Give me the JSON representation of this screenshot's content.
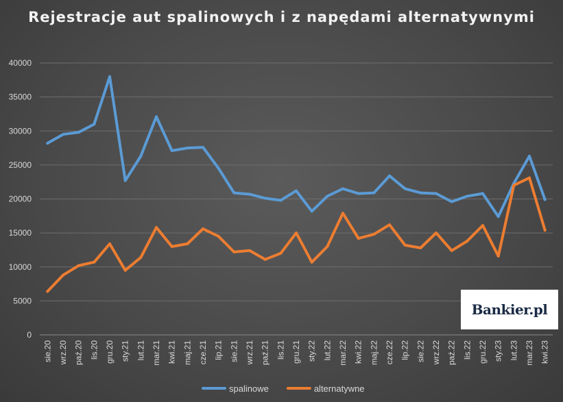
{
  "chart_data": {
    "type": "line",
    "title": "Rejestracje aut spalinowych i z napędami alternatywnymi",
    "categories": [
      "sie.20",
      "wrz.20",
      "paź.20",
      "lis.20",
      "gru.20",
      "sty.21",
      "lut.21",
      "mar.21",
      "kwi.21",
      "maj.21",
      "cze.21",
      "lip.21",
      "sie.21",
      "wrz.21",
      "paź.21",
      "lis.21",
      "gru.21",
      "sty.22",
      "lut.22",
      "mar.22",
      "kwi.22",
      "maj.22",
      "cze.22",
      "lip.22",
      "sie.22",
      "wrz.22",
      "paź.22",
      "lis.22",
      "gru.22",
      "sty.23",
      "lut.23",
      "mar.23",
      "kwi.23"
    ],
    "series": [
      {
        "name": "spalinowe",
        "color": "#5b9bd5",
        "values": [
          28200,
          29500,
          29800,
          31000,
          38000,
          22700,
          26300,
          32100,
          27100,
          27500,
          27600,
          24500,
          20900,
          20700,
          20100,
          19800,
          21200,
          18200,
          20400,
          21500,
          20800,
          20900,
          23400,
          21500,
          20900,
          20800,
          19600,
          20400,
          20800,
          17400,
          22300,
          26300,
          19900
        ]
      },
      {
        "name": "alternatywne",
        "color": "#ed7d31",
        "values": [
          6400,
          8800,
          10200,
          10700,
          13400,
          9500,
          11400,
          15800,
          13000,
          13400,
          15600,
          14500,
          12200,
          12400,
          11100,
          12000,
          15000,
          10700,
          13000,
          17900,
          14200,
          14800,
          16200,
          13200,
          12800,
          15000,
          12400,
          13800,
          16100,
          11600,
          22000,
          23100,
          15400
        ]
      }
    ],
    "ylim": [
      0,
      40000
    ],
    "y_ticks": [
      "0",
      "5000",
      "10000",
      "15000",
      "20000",
      "25000",
      "30000",
      "35000",
      "40000"
    ],
    "grid": true,
    "legend_position": "bottom"
  },
  "logo": {
    "text": "Bankier.pl"
  }
}
